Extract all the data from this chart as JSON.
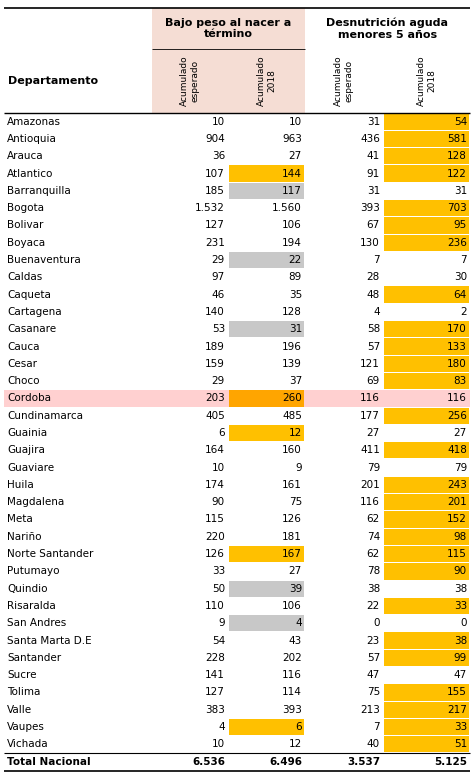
{
  "rows": [
    {
      "dept": "Amazonas",
      "v1": "10",
      "v2": "10",
      "v3": "31",
      "v4": "54",
      "c2": null,
      "c4": "gold"
    },
    {
      "dept": "Antioquia",
      "v1": "904",
      "v2": "963",
      "v3": "436",
      "v4": "581",
      "c2": null,
      "c4": "gold"
    },
    {
      "dept": "Arauca",
      "v1": "36",
      "v2": "27",
      "v3": "41",
      "v4": "128",
      "c2": null,
      "c4": "gold"
    },
    {
      "dept": "Atlantico",
      "v1": "107",
      "v2": "144",
      "v3": "91",
      "v4": "122",
      "c2": "gold",
      "c4": "gold"
    },
    {
      "dept": "Barranquilla",
      "v1": "185",
      "v2": "117",
      "v3": "31",
      "v4": "31",
      "c2": "silver",
      "c4": null
    },
    {
      "dept": "Bogota",
      "v1": "1.532",
      "v2": "1.560",
      "v3": "393",
      "v4": "703",
      "c2": null,
      "c4": "gold"
    },
    {
      "dept": "Bolivar",
      "v1": "127",
      "v2": "106",
      "v3": "67",
      "v4": "95",
      "c2": null,
      "c4": "gold"
    },
    {
      "dept": "Boyaca",
      "v1": "231",
      "v2": "194",
      "v3": "130",
      "v4": "236",
      "c2": null,
      "c4": "gold"
    },
    {
      "dept": "Buenaventura",
      "v1": "29",
      "v2": "22",
      "v3": "7",
      "v4": "7",
      "c2": "silver",
      "c4": null
    },
    {
      "dept": "Caldas",
      "v1": "97",
      "v2": "89",
      "v3": "28",
      "v4": "30",
      "c2": null,
      "c4": null
    },
    {
      "dept": "Caqueta",
      "v1": "46",
      "v2": "35",
      "v3": "48",
      "v4": "64",
      "c2": null,
      "c4": "gold"
    },
    {
      "dept": "Cartagena",
      "v1": "140",
      "v2": "128",
      "v3": "4",
      "v4": "2",
      "c2": null,
      "c4": null
    },
    {
      "dept": "Casanare",
      "v1": "53",
      "v2": "31",
      "v3": "58",
      "v4": "170",
      "c2": "silver",
      "c4": "gold"
    },
    {
      "dept": "Cauca",
      "v1": "189",
      "v2": "196",
      "v3": "57",
      "v4": "133",
      "c2": null,
      "c4": "gold"
    },
    {
      "dept": "Cesar",
      "v1": "159",
      "v2": "139",
      "v3": "121",
      "v4": "180",
      "c2": null,
      "c4": "gold"
    },
    {
      "dept": "Choco",
      "v1": "29",
      "v2": "37",
      "v3": "69",
      "v4": "83",
      "c2": null,
      "c4": "gold"
    },
    {
      "dept": "Cordoba",
      "v1": "203",
      "v2": "260",
      "v3": "116",
      "v4": "116",
      "c2": "orange",
      "c4": null,
      "row_bg": "#FFD0D0"
    },
    {
      "dept": "Cundinamarca",
      "v1": "405",
      "v2": "485",
      "v3": "177",
      "v4": "256",
      "c2": null,
      "c4": "gold"
    },
    {
      "dept": "Guainia",
      "v1": "6",
      "v2": "12",
      "v3": "27",
      "v4": "27",
      "c2": "gold",
      "c4": null
    },
    {
      "dept": "Guajira",
      "v1": "164",
      "v2": "160",
      "v3": "411",
      "v4": "418",
      "c2": null,
      "c4": "gold"
    },
    {
      "dept": "Guaviare",
      "v1": "10",
      "v2": "9",
      "v3": "79",
      "v4": "79",
      "c2": null,
      "c4": null
    },
    {
      "dept": "Huila",
      "v1": "174",
      "v2": "161",
      "v3": "201",
      "v4": "243",
      "c2": null,
      "c4": "gold"
    },
    {
      "dept": "Magdalena",
      "v1": "90",
      "v2": "75",
      "v3": "116",
      "v4": "201",
      "c2": null,
      "c4": "gold"
    },
    {
      "dept": "Meta",
      "v1": "115",
      "v2": "126",
      "v3": "62",
      "v4": "152",
      "c2": null,
      "c4": "gold"
    },
    {
      "dept": "Nariño",
      "v1": "220",
      "v2": "181",
      "v3": "74",
      "v4": "98",
      "c2": null,
      "c4": "gold"
    },
    {
      "dept": "Norte Santander",
      "v1": "126",
      "v2": "167",
      "v3": "62",
      "v4": "115",
      "c2": "gold",
      "c4": "gold"
    },
    {
      "dept": "Putumayo",
      "v1": "33",
      "v2": "27",
      "v3": "78",
      "v4": "90",
      "c2": null,
      "c4": "gold"
    },
    {
      "dept": "Quindio",
      "v1": "50",
      "v2": "39",
      "v3": "38",
      "v4": "38",
      "c2": "silver",
      "c4": null
    },
    {
      "dept": "Risaralda",
      "v1": "110",
      "v2": "106",
      "v3": "22",
      "v4": "33",
      "c2": null,
      "c4": "gold"
    },
    {
      "dept": "San Andres",
      "v1": "9",
      "v2": "4",
      "v3": "0",
      "v4": "0",
      "c2": "silver",
      "c4": null
    },
    {
      "dept": "Santa Marta D.E",
      "v1": "54",
      "v2": "43",
      "v3": "23",
      "v4": "38",
      "c2": null,
      "c4": "gold"
    },
    {
      "dept": "Santander",
      "v1": "228",
      "v2": "202",
      "v3": "57",
      "v4": "99",
      "c2": null,
      "c4": "gold"
    },
    {
      "dept": "Sucre",
      "v1": "141",
      "v2": "116",
      "v3": "47",
      "v4": "47",
      "c2": null,
      "c4": null
    },
    {
      "dept": "Tolima",
      "v1": "127",
      "v2": "114",
      "v3": "75",
      "v4": "155",
      "c2": null,
      "c4": "gold"
    },
    {
      "dept": "Valle",
      "v1": "383",
      "v2": "393",
      "v3": "213",
      "v4": "217",
      "c2": null,
      "c4": "gold"
    },
    {
      "dept": "Vaupes",
      "v1": "4",
      "v2": "6",
      "v3": "7",
      "v4": "33",
      "c2": "gold",
      "c4": "gold"
    },
    {
      "dept": "Vichada",
      "v1": "10",
      "v2": "12",
      "v3": "40",
      "v4": "51",
      "c2": null,
      "c4": "gold"
    }
  ],
  "total": {
    "dept": "Total Nacional",
    "v1": "6.536",
    "v2": "6.496",
    "v3": "3.537",
    "v4": "5.125"
  },
  "group1_label": "Bajo peso al nacer a\ntérmino",
  "group2_label": "Desnutrición aguda\nmenores 5 años",
  "sub_labels": [
    "Acumulado\nesperado",
    "Acumulado\n2018",
    "Acumulado\nesperado",
    "Acumulado\n2018"
  ],
  "dept_label": "Departamento",
  "color_gold": "#FFC000",
  "color_silver": "#C8C8C8",
  "color_orange": "#FFA500",
  "color_pink": "#FFD0D0",
  "color_bpnt_bg": "#F5DDD4"
}
